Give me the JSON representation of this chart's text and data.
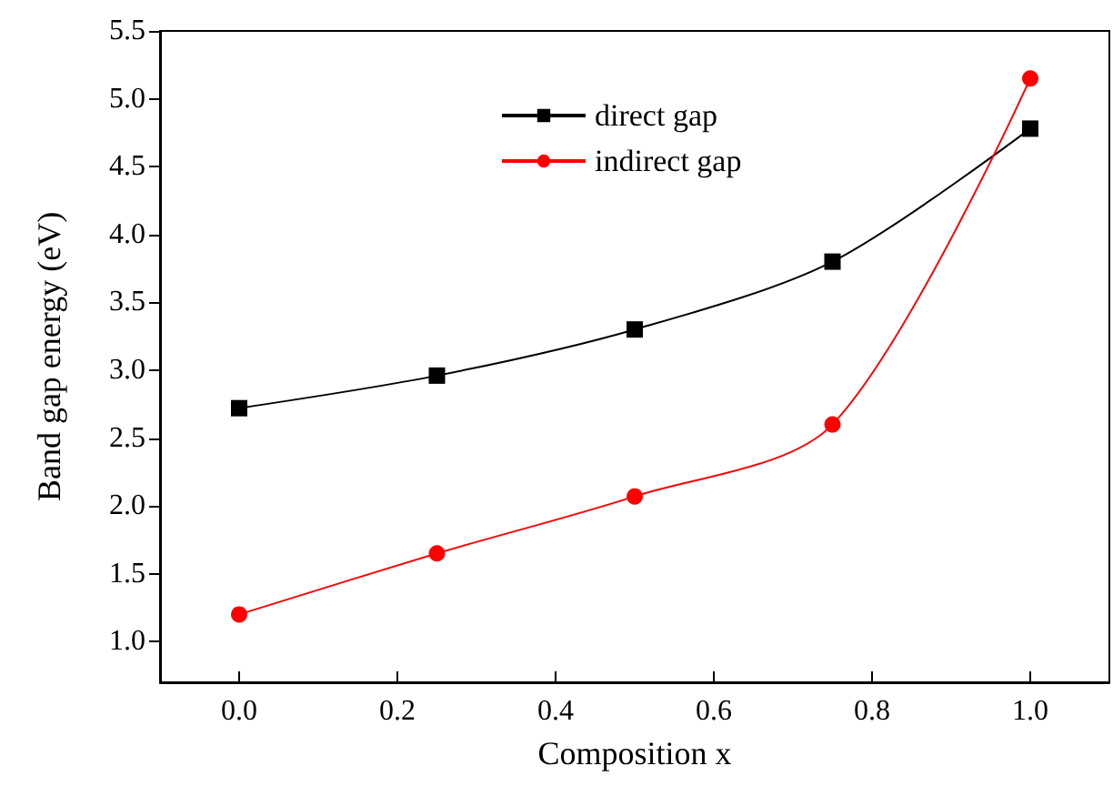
{
  "chart_data": {
    "type": "line",
    "xlabel": "Composition x",
    "ylabel": "Band gap energy (eV)",
    "x": [
      0,
      0.25,
      0.5,
      0.75,
      1.0
    ],
    "series": [
      {
        "name": "direct gap",
        "color": "#000000",
        "marker": "square",
        "values": [
          2.72,
          2.96,
          3.3,
          3.8,
          4.78
        ]
      },
      {
        "name": "indirect gap",
        "color": "#ff0000",
        "marker": "circle",
        "values": [
          1.2,
          1.65,
          2.07,
          2.6,
          5.15
        ]
      }
    ],
    "xlim": [
      -0.1,
      1.1
    ],
    "xticks": [
      {
        "value": 0,
        "label": "0.0"
      },
      0.2,
      0.4,
      0.6,
      0.8,
      {
        "value": 1,
        "label": "1.0"
      }
    ],
    "ylim": [
      0.7,
      5.5
    ],
    "yticks": [
      {
        "value": 1,
        "label": "1.0"
      },
      1.5,
      {
        "value": 2,
        "label": "2.0"
      },
      2.5,
      {
        "value": 3,
        "label": "3.0"
      },
      3.5,
      {
        "value": 4,
        "label": "4.0"
      },
      4.5,
      {
        "value": 5,
        "label": "5.0"
      },
      5.5
    ],
    "legend": "top",
    "grid": false,
    "line_style": "solid"
  }
}
